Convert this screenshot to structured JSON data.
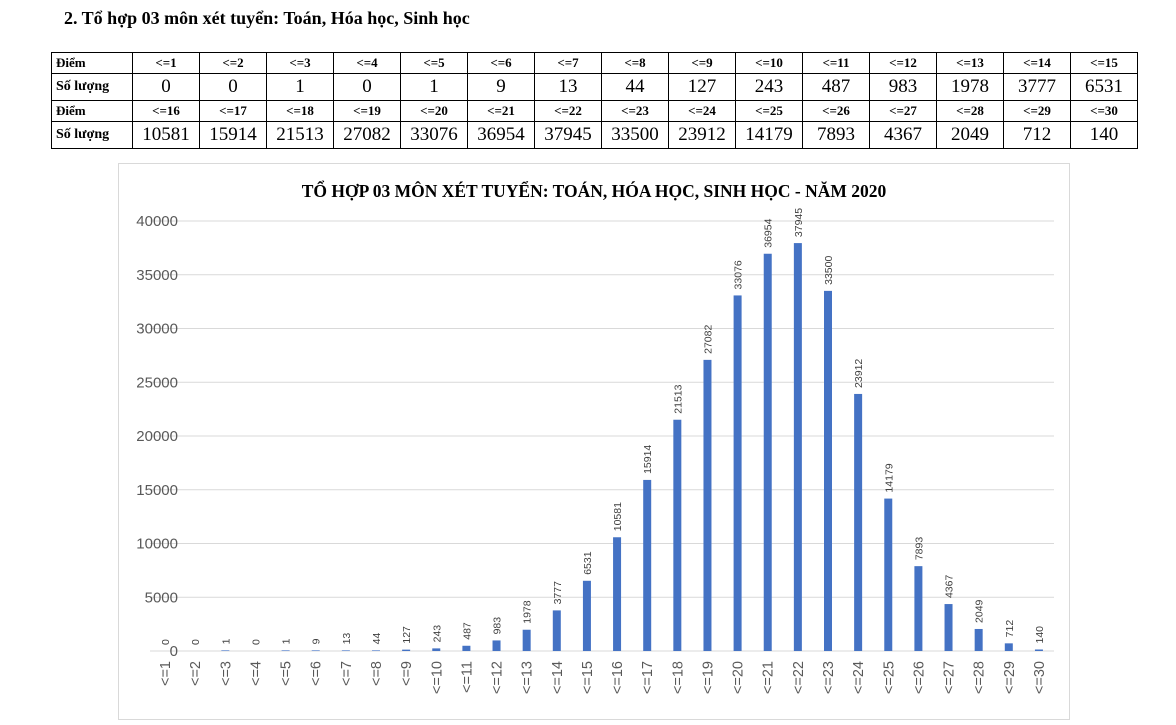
{
  "heading": "2. Tổ hợp 03 môn xét tuyển: Toán, Hóa học, Sinh học",
  "table": {
    "row_label_score": "Điểm",
    "row_label_count": "Số lượng",
    "blocks": [
      {
        "scores": [
          "<=1",
          "<=2",
          "<=3",
          "<=4",
          "<=5",
          "<=6",
          "<=7",
          "<=8",
          "<=9",
          "<=10",
          "<=11",
          "<=12",
          "<=13",
          "<=14",
          "<=15"
        ],
        "counts": [
          "0",
          "0",
          "1",
          "0",
          "1",
          "9",
          "13",
          "44",
          "127",
          "243",
          "487",
          "983",
          "1978",
          "3777",
          "6531"
        ]
      },
      {
        "scores": [
          "<=16",
          "<=17",
          "<=18",
          "<=19",
          "<=20",
          "<=21",
          "<=22",
          "<=23",
          "<=24",
          "<=25",
          "<=26",
          "<=27",
          "<=28",
          "<=29",
          "<=30"
        ],
        "counts": [
          "10581",
          "15914",
          "21513",
          "27082",
          "33076",
          "36954",
          "37945",
          "33500",
          "23912",
          "14179",
          "7893",
          "4367",
          "2049",
          "712",
          "140"
        ]
      }
    ]
  },
  "chart_data": {
    "type": "bar",
    "title": "TỔ HỢP 03 MÔN XÉT TUYỂN: TOÁN, HÓA HỌC, SINH HỌC - NĂM 2020",
    "xlabel": "",
    "ylabel": "",
    "categories": [
      "<=1",
      "<=2",
      "<=3",
      "<=4",
      "<=5",
      "<=6",
      "<=7",
      "<=8",
      "<=9",
      "<=10",
      "<=11",
      "<=12",
      "<=13",
      "<=14",
      "<=15",
      "<=16",
      "<=17",
      "<=18",
      "<=19",
      "<=20",
      "<=21",
      "<=22",
      "<=23",
      "<=24",
      "<=25",
      "<=26",
      "<=27",
      "<=28",
      "<=29",
      "<=30"
    ],
    "values": [
      0,
      0,
      1,
      0,
      1,
      9,
      13,
      44,
      127,
      243,
      487,
      983,
      1978,
      3777,
      6531,
      10581,
      15914,
      21513,
      27082,
      33076,
      36954,
      37945,
      33500,
      23912,
      14179,
      7893,
      4367,
      2049,
      712,
      140
    ],
    "ylim": [
      0,
      40000
    ],
    "yticks": [
      0,
      5000,
      10000,
      15000,
      20000,
      25000,
      30000,
      35000,
      40000
    ],
    "grid": true,
    "data_labels": true,
    "legend": "none",
    "bar_color": "#4472c4"
  }
}
